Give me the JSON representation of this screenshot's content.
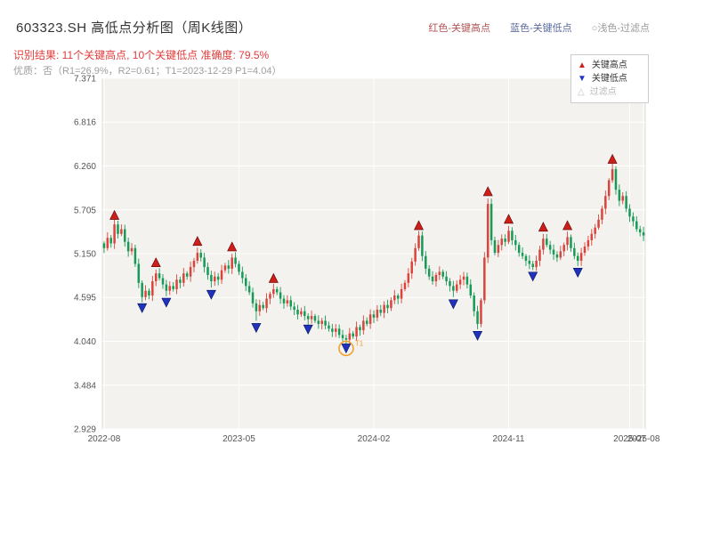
{
  "header": {
    "title": "603323.SH 高低点分析图（周K线图）",
    "legend_top": [
      {
        "label": "红色-关键高点",
        "color": "#b25454"
      },
      {
        "label": "蓝色-关键低点",
        "color": "#5a6a9e"
      },
      {
        "label": "○浅色-过滤点",
        "color": "#9a9a9a"
      }
    ],
    "result_line": "识别结果: 11个关键高点, 10个关键低点  准确度: 79.5%",
    "quality_line": "优质：否（R1=26.9%，R2=0.61；T1=2023-12-29 P1=4.04）"
  },
  "legend_box": {
    "items": [
      {
        "label": "关键高点",
        "type": "up-triangle",
        "color": "#cc2020"
      },
      {
        "label": "关键低点",
        "type": "down-triangle",
        "color": "#2233cc"
      },
      {
        "label": "过滤点",
        "type": "hollow-triangle",
        "color": "#c4c4c4"
      }
    ]
  },
  "chart_data": {
    "type": "candlestick",
    "symbol": "603323.SH",
    "period": "weekly",
    "title": "603323.SH 高低点分析图（周K线图）",
    "ylim": [
      2.929,
      7.371
    ],
    "y_ticks": [
      7.371,
      6.816,
      6.26,
      5.705,
      5.15,
      4.595,
      4.04,
      3.484,
      2.929
    ],
    "x_ticks": [
      {
        "i": 0,
        "label": "2022-08"
      },
      {
        "i": 39,
        "label": "2023-05"
      },
      {
        "i": 78,
        "label": "2024-02"
      },
      {
        "i": 117,
        "label": "2024-11"
      },
      {
        "i": 152,
        "label": "2025-07"
      },
      {
        "i": 156,
        "label": "2025-08"
      }
    ],
    "n": 157,
    "closes": [
      5.22,
      5.35,
      5.28,
      5.52,
      5.4,
      5.46,
      5.3,
      5.18,
      5.22,
      5.02,
      4.78,
      4.6,
      4.68,
      4.62,
      4.8,
      4.9,
      4.84,
      4.76,
      4.68,
      4.74,
      4.7,
      4.82,
      4.78,
      4.9,
      4.86,
      4.98,
      5.06,
      5.16,
      5.1,
      4.98,
      4.88,
      4.8,
      4.86,
      4.82,
      4.94,
      5.0,
      4.96,
      5.1,
      5.02,
      4.92,
      4.84,
      4.74,
      4.66,
      4.52,
      4.42,
      4.5,
      4.46,
      4.58,
      4.64,
      4.7,
      4.66,
      4.58,
      4.52,
      4.56,
      4.48,
      4.44,
      4.38,
      4.42,
      4.36,
      4.32,
      4.36,
      4.3,
      4.26,
      4.3,
      4.24,
      4.2,
      4.16,
      4.2,
      4.12,
      4.08,
      4.06,
      4.14,
      4.1,
      4.22,
      4.18,
      4.3,
      4.26,
      4.38,
      4.34,
      4.44,
      4.4,
      4.5,
      4.46,
      4.56,
      4.62,
      4.58,
      4.7,
      4.78,
      4.9,
      5.05,
      5.22,
      5.38,
      5.12,
      4.96,
      4.86,
      4.8,
      4.88,
      4.92,
      4.86,
      4.8,
      4.74,
      4.68,
      4.76,
      4.82,
      4.86,
      4.76,
      4.62,
      4.42,
      4.26,
      4.56,
      5.1,
      5.78,
      5.32,
      5.16,
      5.26,
      5.34,
      5.3,
      5.44,
      5.32,
      5.26,
      5.16,
      5.12,
      5.06,
      5.02,
      4.98,
      5.06,
      5.2,
      5.34,
      5.26,
      5.2,
      5.14,
      5.1,
      5.18,
      5.26,
      5.36,
      5.22,
      5.12,
      5.06,
      5.16,
      5.24,
      5.32,
      5.4,
      5.48,
      5.58,
      5.72,
      5.88,
      6.08,
      6.22,
      5.96,
      5.82,
      5.88,
      5.72,
      5.62,
      5.56,
      5.46,
      5.42,
      5.38
    ],
    "key_highs": [
      {
        "i": 3,
        "price": 5.55
      },
      {
        "i": 15,
        "price": 4.95
      },
      {
        "i": 27,
        "price": 5.22
      },
      {
        "i": 37,
        "price": 5.15
      },
      {
        "i": 49,
        "price": 4.75
      },
      {
        "i": 91,
        "price": 5.42
      },
      {
        "i": 111,
        "price": 5.85
      },
      {
        "i": 117,
        "price": 5.5
      },
      {
        "i": 127,
        "price": 5.4
      },
      {
        "i": 134,
        "price": 5.42
      },
      {
        "i": 147,
        "price": 6.26
      }
    ],
    "key_lows": [
      {
        "i": 11,
        "price": 4.55
      },
      {
        "i": 18,
        "price": 4.62
      },
      {
        "i": 31,
        "price": 4.72
      },
      {
        "i": 44,
        "price": 4.3
      },
      {
        "i": 59,
        "price": 4.28
      },
      {
        "i": 70,
        "price": 4.04
      },
      {
        "i": 101,
        "price": 4.6
      },
      {
        "i": 108,
        "price": 4.2
      },
      {
        "i": 124,
        "price": 4.95
      },
      {
        "i": 137,
        "price": 5.0
      }
    ],
    "filtered_point": {
      "i": 70,
      "price": 4.04,
      "label": "T1",
      "date": "2023-12-29"
    },
    "colors": {
      "up": "#d9443c",
      "down": "#179a57",
      "high_marker": "#cc1f1a",
      "low_marker": "#2233bb",
      "grid": "#ffffff",
      "plot_bg": "#f3f2ee",
      "plot_border": "#dcdcd4",
      "tick_text": "#555555",
      "circle": "#f0a030"
    }
  }
}
